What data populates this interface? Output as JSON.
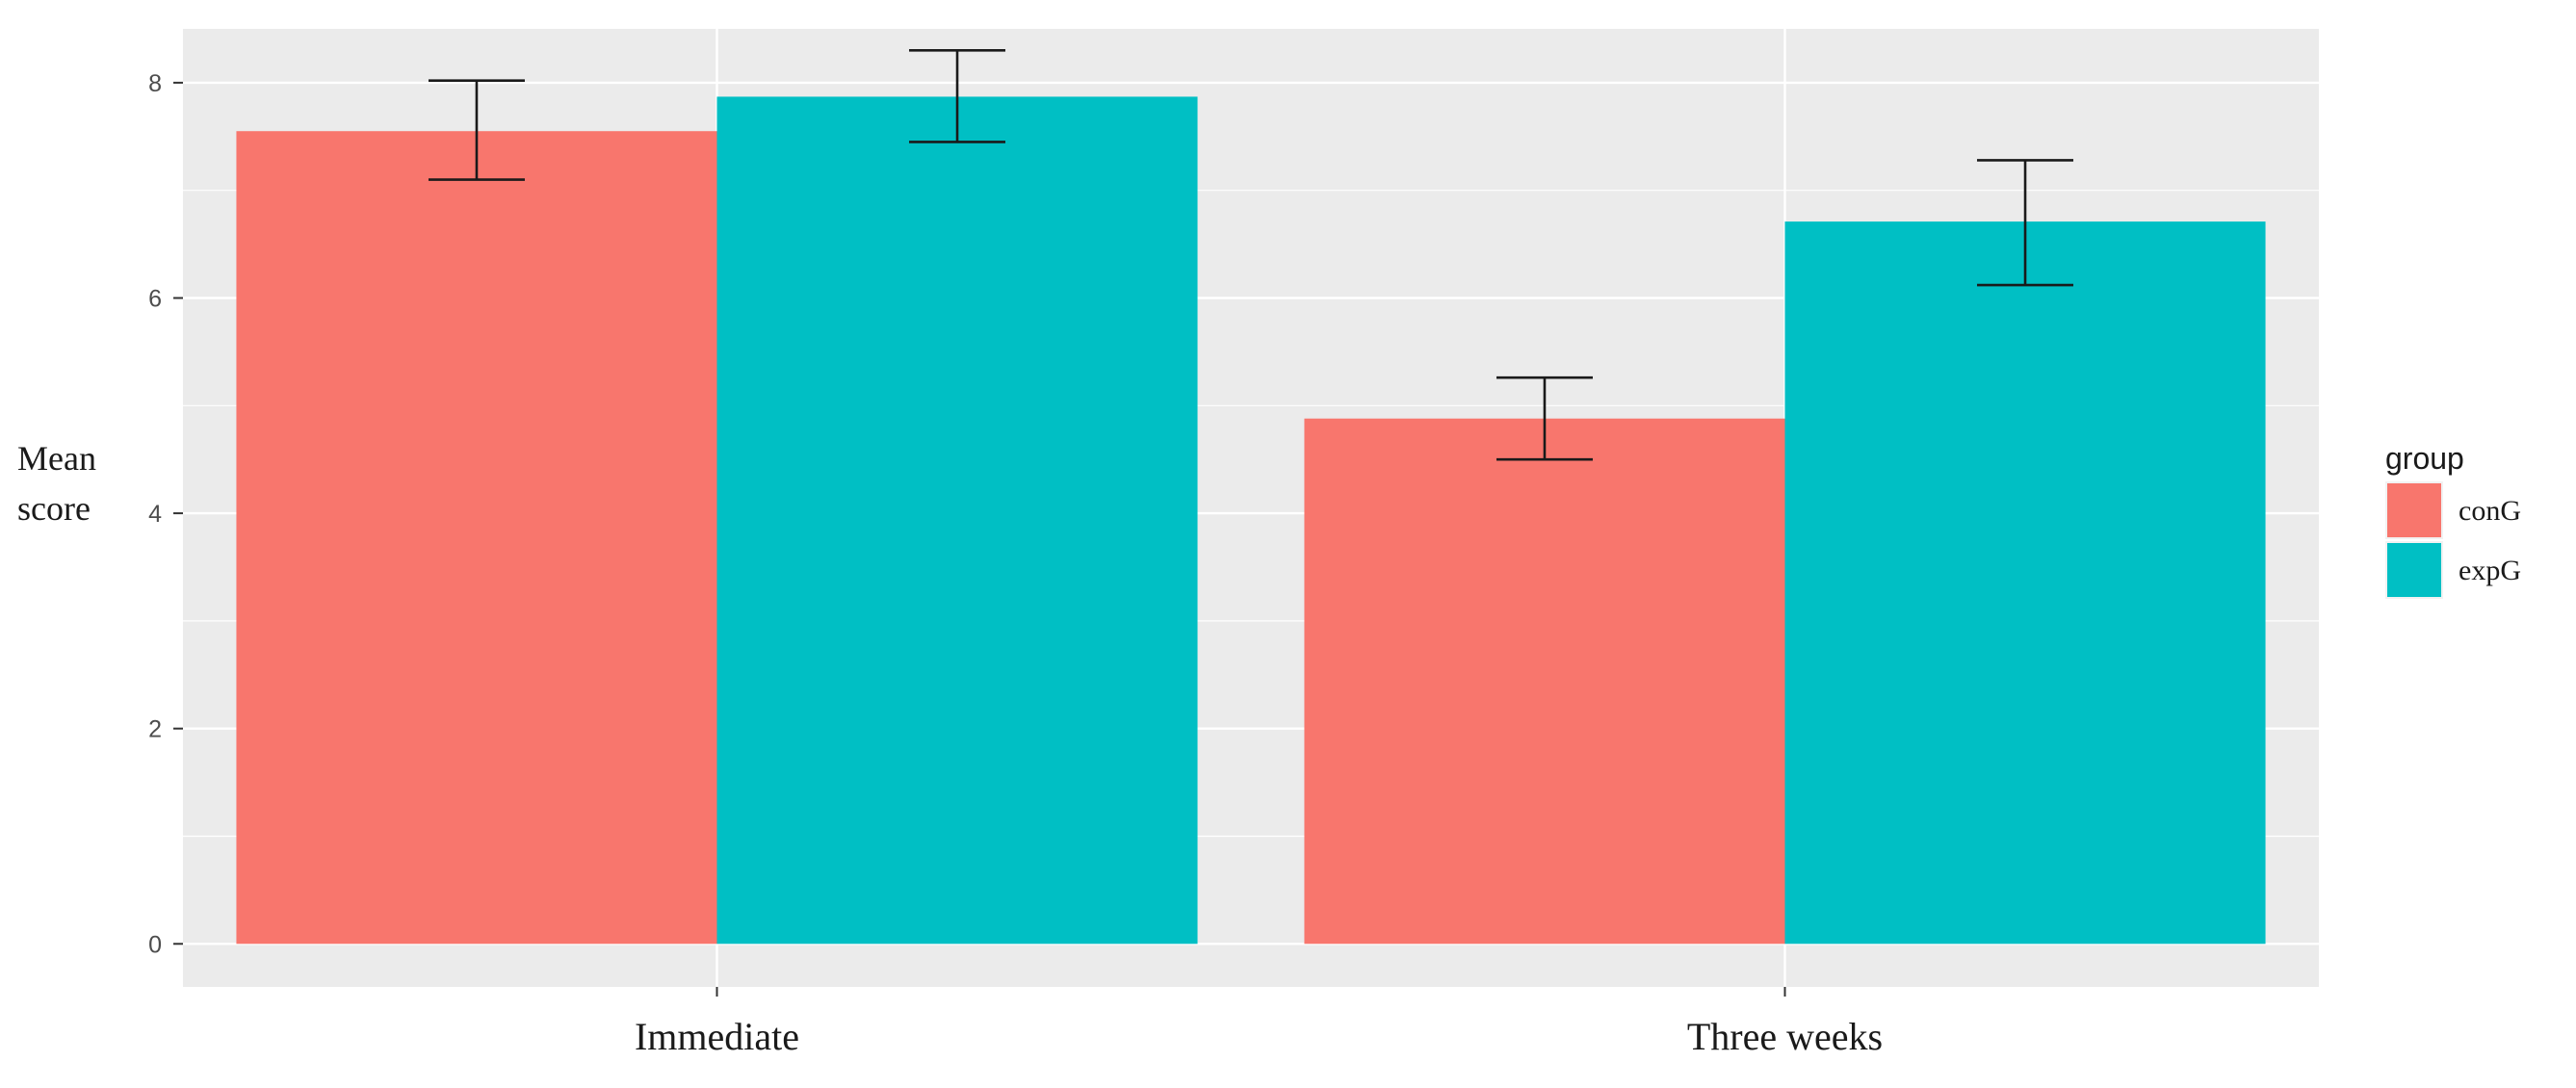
{
  "chart_data": {
    "type": "bar",
    "categories": [
      "Immediate",
      "Three weeks"
    ],
    "series": [
      {
        "name": "conG",
        "color": "#F8766D",
        "values": [
          7.55,
          4.88
        ],
        "error_low": [
          7.1,
          4.5
        ],
        "error_high": [
          8.02,
          5.26
        ]
      },
      {
        "name": "expG",
        "color": "#00BFC4",
        "values": [
          7.87,
          6.71
        ],
        "error_low": [
          7.45,
          6.12
        ],
        "error_high": [
          8.3,
          7.28
        ]
      }
    ],
    "ylabel_line1": "Mean",
    "ylabel_line2": "score",
    "xlabel": "",
    "ylim": [
      -0.4,
      8.5
    ],
    "yticks": [
      0,
      2,
      4,
      6,
      8
    ],
    "ytick_labels": [
      "0",
      "2",
      "4",
      "6",
      "8"
    ],
    "legend_title": "group",
    "legend_position": "right",
    "grid": true,
    "panel_background": "#EBEBEB",
    "grid_color": "#FFFFFF"
  }
}
